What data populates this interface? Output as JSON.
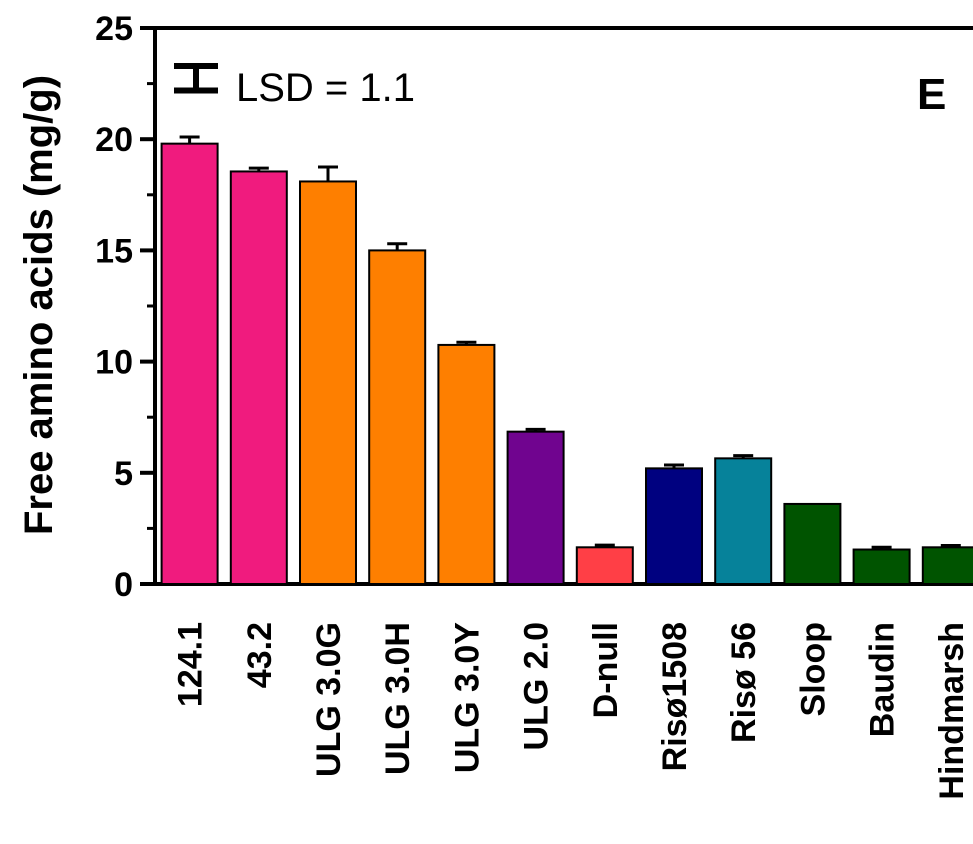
{
  "chart_data": {
    "type": "bar",
    "title": "",
    "panel_label": "E",
    "xlabel": "",
    "ylabel": "Free amino acids (mg/g)",
    "ylim": [
      0,
      25
    ],
    "yticks": [
      "0",
      "5",
      "10",
      "15",
      "20",
      "25"
    ],
    "grid": false,
    "legend": "none",
    "annotation": "LSD = 1.1",
    "lsd_value": 1.1,
    "categories": [
      "124.1",
      "43.2",
      "ULG 3.0G",
      "ULG 3.0H",
      "ULG 3.0Y",
      "ULG 2.0",
      "D-null",
      "Risø1508",
      "Risø 56",
      "Sloop",
      "Baudin",
      "Hindmarsh"
    ],
    "values": [
      19.8,
      18.55,
      18.1,
      15.0,
      10.75,
      6.85,
      1.65,
      5.2,
      5.65,
      3.6,
      1.55,
      1.65
    ],
    "errors": [
      0.3,
      0.15,
      0.65,
      0.3,
      0.12,
      0.1,
      0.1,
      0.15,
      0.12,
      0.0,
      0.1,
      0.08
    ],
    "colors": [
      "#f01b7e",
      "#f01b7e",
      "#fe7f00",
      "#fe7f00",
      "#fe7f00",
      "#70048f",
      "#ff3f46",
      "#000180",
      "#06829a",
      "#005400",
      "#005400",
      "#005400"
    ]
  }
}
